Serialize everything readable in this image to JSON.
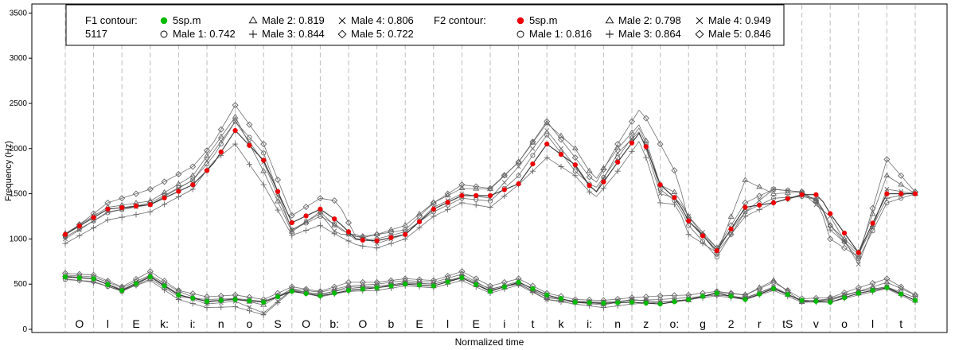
{
  "chart_data": {
    "type": "line",
    "xlabel": "Normalized time",
    "ylabel": "Frequency (Hz)",
    "ylim": [
      0,
      3600
    ],
    "yticks": [
      0,
      500,
      1000,
      1500,
      2000,
      2500,
      3000,
      3500
    ],
    "grid": "vertical dashed segment boundaries",
    "legend_position": "top",
    "legend": {
      "f1_title": "F1 contour:",
      "f1_subtitle": "5117",
      "f2_title": "F2 contour:",
      "f1_entries": [
        {
          "marker": "filled-circle",
          "label": "5sp.m"
        },
        {
          "marker": "triangle",
          "label": "Male 2: 0.819"
        },
        {
          "marker": "cross",
          "label": "Male 4: 0.806"
        },
        {
          "marker": "circle",
          "label": "Male 1: 0.742"
        },
        {
          "marker": "plus",
          "label": "Male 3: 0.844"
        },
        {
          "marker": "diamond",
          "label": "Male 5: 0.722"
        }
      ],
      "f2_entries": [
        {
          "marker": "filled-circle",
          "label": "5sp.m"
        },
        {
          "marker": "triangle",
          "label": "Male 2: 0.798"
        },
        {
          "marker": "cross",
          "label": "Male 4: 0.949"
        },
        {
          "marker": "circle",
          "label": "Male 1: 0.816"
        },
        {
          "marker": "plus",
          "label": "Male 3: 0.864"
        },
        {
          "marker": "diamond",
          "label": "Male 5: 0.846"
        }
      ]
    },
    "segments": [
      "O",
      "l",
      "E",
      "k:",
      "i:",
      "n",
      "o",
      "S",
      "O",
      "b:",
      "O",
      "b",
      "E",
      "l",
      "E",
      "i",
      "t",
      "k",
      "i:",
      "n",
      "z",
      "o:",
      "g",
      "2",
      "r",
      "tS",
      "v",
      "o",
      "l",
      "t"
    ],
    "colors": {
      "f1": "#00bb00",
      "f2": "#ee0000",
      "others": "#555555"
    },
    "f2_contour": {
      "x": [
        0,
        1.5,
        3,
        4.5,
        5.2,
        6,
        7,
        8,
        9,
        9.6,
        10.3,
        11,
        12,
        13,
        14,
        15,
        16,
        17,
        18,
        18.7,
        19.5,
        20.3,
        21,
        21.6,
        22,
        23,
        24,
        25,
        26,
        26.6,
        27,
        28,
        29,
        30
      ],
      "5sp.m": [
        1050,
        1330,
        1380,
        1600,
        1820,
        2200,
        1870,
        1180,
        1330,
        1200,
        990,
        980,
        1050,
        1330,
        1480,
        1480,
        1610,
        2050,
        1820,
        1500,
        1850,
        2190,
        1600,
        1430,
        1200,
        870,
        1350,
        1400,
        1490,
        1490,
        1280,
        850,
        1500,
        1500
      ],
      "Male 1": [
        1020,
        1290,
        1400,
        1650,
        1900,
        2300,
        1950,
        1100,
        1250,
        1150,
        980,
        1000,
        1080,
        1300,
        1450,
        1420,
        1700,
        2150,
        1750,
        1550,
        1900,
        2250,
        1550,
        1400,
        1150,
        800,
        1300,
        1450,
        1470,
        1430,
        1150,
        780,
        1400,
        1500
      ],
      "Male 2": [
        1060,
        1350,
        1420,
        1700,
        2000,
        2350,
        1750,
        1080,
        1300,
        1120,
        1020,
        1050,
        1150,
        1400,
        1560,
        1550,
        1850,
        2280,
        2000,
        1650,
        2000,
        2280,
        1600,
        1500,
        1250,
        840,
        1650,
        1500,
        1520,
        1400,
        1150,
        850,
        1700,
        1500
      ],
      "Male 3": [
        950,
        1210,
        1300,
        1550,
        1850,
        2050,
        1600,
        1040,
        1150,
        1040,
        930,
        900,
        1000,
        1250,
        1400,
        1350,
        1600,
        1900,
        1700,
        1450,
        1750,
        2100,
        1400,
        1380,
        1050,
        850,
        1250,
        1400,
        1480,
        1440,
        1100,
        830,
        1450,
        1520
      ],
      "Male 4": [
        1000,
        1300,
        1380,
        1650,
        1950,
        2300,
        1850,
        1100,
        1280,
        1050,
        1050,
        950,
        1050,
        1350,
        1500,
        1450,
        1800,
        2200,
        1800,
        1500,
        1950,
        2200,
        1500,
        1450,
        1250,
        900,
        1300,
        1550,
        1520,
        1350,
        1250,
        720,
        1550,
        1500
      ],
      "Male 5": [
        1040,
        1400,
        1550,
        1800,
        2050,
        2480,
        2050,
        1260,
        1450,
        1420,
        1000,
        1050,
        1100,
        1400,
        1600,
        1560,
        1850,
        2300,
        1900,
        1600,
        2050,
        2450,
        2050,
        1700,
        1200,
        900,
        1400,
        1550,
        1520,
        1400,
        1000,
        800,
        1880,
        1520
      ]
    },
    "f1_contour": {
      "x": [
        0,
        1,
        2,
        3,
        4,
        5,
        6,
        7,
        8,
        9,
        10,
        11,
        12,
        13,
        14,
        15,
        16,
        17,
        18,
        19,
        20,
        21,
        22,
        23,
        24,
        25,
        26,
        27,
        28,
        29,
        30
      ],
      "5sp.m": [
        580,
        560,
        430,
        580,
        380,
        310,
        330,
        300,
        420,
        370,
        430,
        460,
        500,
        480,
        570,
        420,
        520,
        380,
        300,
        290,
        300,
        280,
        330,
        400,
        330,
        450,
        320,
        300,
        400,
        460,
        320
      ],
      "Male 1": [
        550,
        530,
        420,
        560,
        360,
        330,
        340,
        310,
        430,
        390,
        450,
        480,
        510,
        500,
        580,
        450,
        500,
        360,
        310,
        300,
        320,
        330,
        350,
        380,
        350,
        460,
        310,
        320,
        420,
        470,
        350
      ],
      "Male 2": [
        600,
        580,
        460,
        600,
        420,
        300,
        340,
        270,
        450,
        410,
        480,
        500,
        540,
        520,
        610,
        440,
        530,
        350,
        310,
        280,
        330,
        300,
        320,
        410,
        380,
        540,
        300,
        340,
        420,
        520,
        380
      ],
      "Male 3": [
        560,
        520,
        430,
        540,
        330,
        240,
        250,
        160,
        430,
        360,
        420,
        430,
        480,
        460,
        540,
        400,
        490,
        330,
        280,
        240,
        280,
        300,
        330,
        370,
        330,
        430,
        300,
        300,
        380,
        450,
        300
      ],
      "Male 4": [
        590,
        560,
        440,
        590,
        390,
        280,
        310,
        180,
        440,
        380,
        470,
        460,
        520,
        500,
        570,
        430,
        510,
        330,
        300,
        270,
        330,
        300,
        330,
        400,
        340,
        470,
        310,
        330,
        420,
        470,
        320
      ],
      "Male 5": [
        620,
        600,
        470,
        640,
        430,
        360,
        380,
        330,
        470,
        420,
        520,
        520,
        560,
        540,
        640,
        480,
        560,
        400,
        330,
        320,
        350,
        370,
        380,
        420,
        380,
        520,
        340,
        350,
        460,
        560,
        380
      ]
    }
  }
}
